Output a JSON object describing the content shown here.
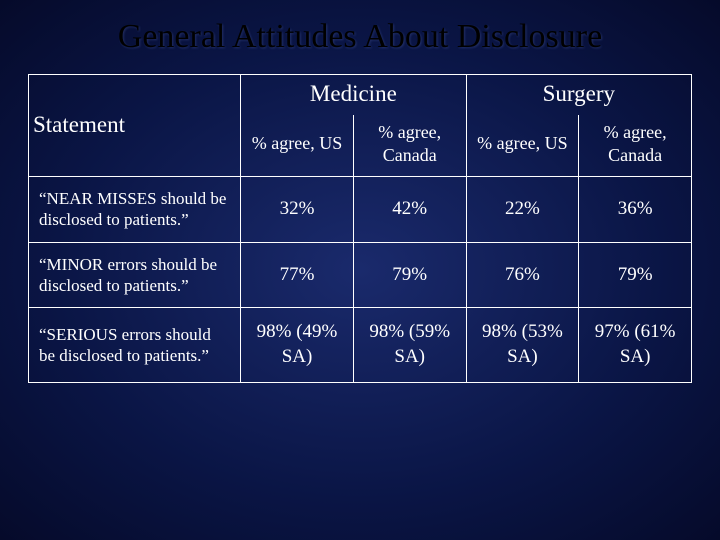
{
  "slide": {
    "title": "General Attitudes About Disclosure",
    "background_gradient": [
      "#1a2a6c",
      "#0a1545",
      "#050a2a"
    ],
    "title_color": "#000000",
    "text_color": "#ffffff",
    "border_color": "#ffffff"
  },
  "table": {
    "statement_header": "Statement",
    "group_headers": [
      "Medicine",
      "Surgery"
    ],
    "sub_headers": [
      "% agree, US",
      "% agree, Canada",
      "% agree, US",
      "% agree, Canada"
    ],
    "rows": [
      {
        "statement": "“NEAR MISSES should be disclosed to patients.”",
        "values": [
          "32%",
          "42%",
          "22%",
          "36%"
        ]
      },
      {
        "statement": "“MINOR errors should be disclosed to patients.”",
        "values": [
          "77%",
          "79%",
          "76%",
          "79%"
        ]
      },
      {
        "statement": "“SERIOUS errors should be disclosed to patients.”",
        "values": [
          "98% (49% SA)",
          "98% (59% SA)",
          "98% (53% SA)",
          "97% (61% SA)"
        ]
      }
    ],
    "font_family": "Times New Roman",
    "title_fontsize": 34,
    "group_header_fontsize": 23,
    "sub_header_fontsize": 18,
    "statement_fontsize": 17,
    "data_fontsize": 19
  }
}
